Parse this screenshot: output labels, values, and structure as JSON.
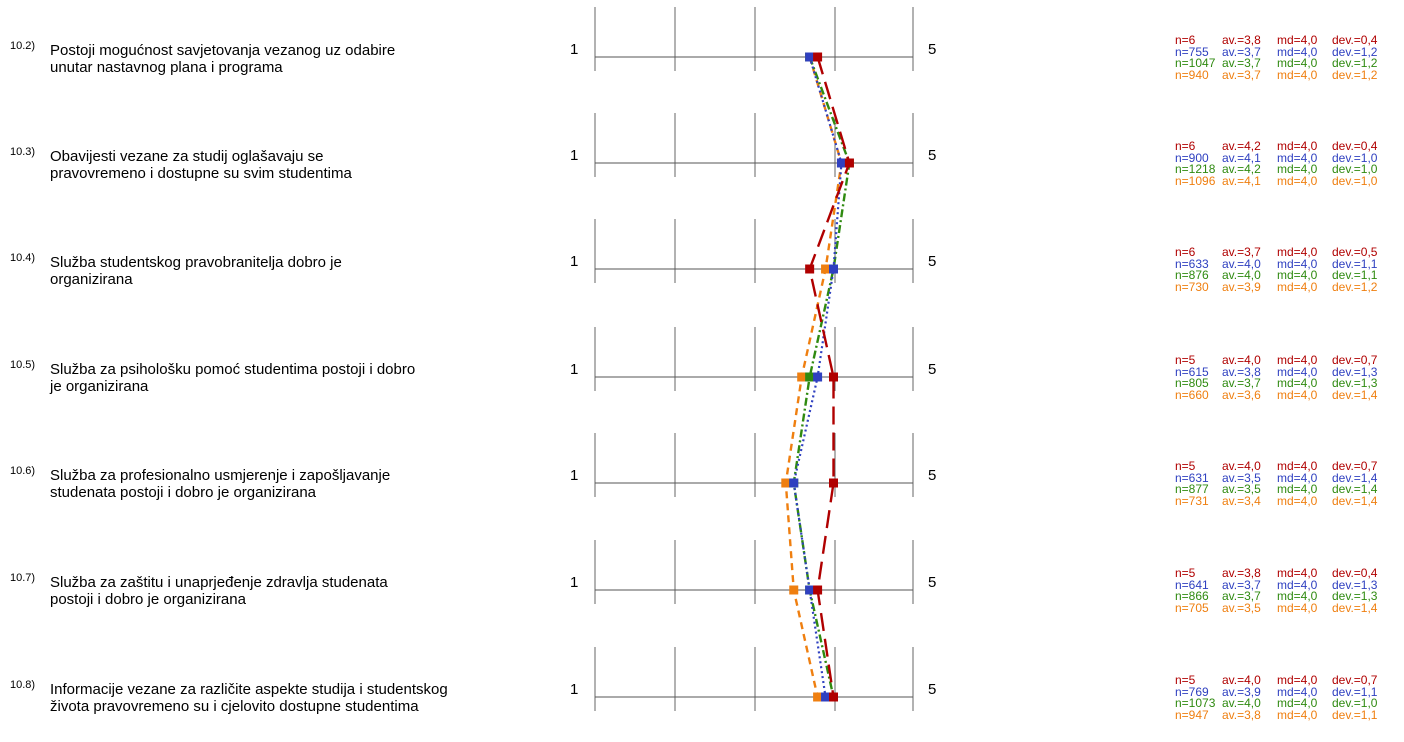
{
  "colors": {
    "series_0": "#b00000",
    "series_1": "#2f40c0",
    "series_2": "#2f8a10",
    "series_3": "#ef7f10",
    "axis": "#555555"
  },
  "chart_data": {
    "type": "line",
    "scale_min_label": "1",
    "scale_max_label": "5",
    "xlim": [
      1,
      5
    ],
    "series": [
      {
        "values": [
          3.8,
          4.2,
          3.7,
          4.0,
          4.0,
          3.8,
          4.0
        ]
      },
      {
        "values": [
          3.7,
          4.1,
          4.0,
          3.8,
          3.5,
          3.7,
          3.9
        ]
      },
      {
        "values": [
          3.7,
          4.2,
          4.0,
          3.7,
          3.5,
          3.7,
          4.0
        ]
      },
      {
        "values": [
          3.7,
          4.1,
          3.9,
          3.6,
          3.4,
          3.5,
          3.8
        ]
      }
    ],
    "items": [
      {
        "number": "10.2)",
        "text": "Postoji mogućnost savjetovanja vezanog uz odabire unutar nastavnog plana i programa",
        "stats": [
          {
            "n": "n=6",
            "av": "av.=3,8",
            "md": "md=4,0",
            "dev": "dev.=0,4"
          },
          {
            "n": "n=755",
            "av": "av.=3,7",
            "md": "md=4,0",
            "dev": "dev.=1,2"
          },
          {
            "n": "n=1047",
            "av": "av.=3,7",
            "md": "md=4,0",
            "dev": "dev.=1,2"
          },
          {
            "n": "n=940",
            "av": "av.=3,7",
            "md": "md=4,0",
            "dev": "dev.=1,2"
          }
        ]
      },
      {
        "number": "10.3)",
        "text": "Obavijesti vezane za studij oglašavaju se pravovremeno i dostupne su svim studentima",
        "stats": [
          {
            "n": "n=6",
            "av": "av.=4,2",
            "md": "md=4,0",
            "dev": "dev.=0,4"
          },
          {
            "n": "n=900",
            "av": "av.=4,1",
            "md": "md=4,0",
            "dev": "dev.=1,0"
          },
          {
            "n": "n=1218",
            "av": "av.=4,2",
            "md": "md=4,0",
            "dev": "dev.=1,0"
          },
          {
            "n": "n=1096",
            "av": "av.=4,1",
            "md": "md=4,0",
            "dev": "dev.=1,0"
          }
        ]
      },
      {
        "number": "10.4)",
        "text": "Služba studentskog pravobranitelja dobro je organizirana",
        "stats": [
          {
            "n": "n=6",
            "av": "av.=3,7",
            "md": "md=4,0",
            "dev": "dev.=0,5"
          },
          {
            "n": "n=633",
            "av": "av.=4,0",
            "md": "md=4,0",
            "dev": "dev.=1,1"
          },
          {
            "n": "n=876",
            "av": "av.=4,0",
            "md": "md=4,0",
            "dev": "dev.=1,1"
          },
          {
            "n": "n=730",
            "av": "av.=3,9",
            "md": "md=4,0",
            "dev": "dev.=1,2"
          }
        ]
      },
      {
        "number": "10.5)",
        "text": "Služba za psihološku pomoć studentima postoji i dobro je organizirana",
        "stats": [
          {
            "n": "n=5",
            "av": "av.=4,0",
            "md": "md=4,0",
            "dev": "dev.=0,7"
          },
          {
            "n": "n=615",
            "av": "av.=3,8",
            "md": "md=4,0",
            "dev": "dev.=1,3"
          },
          {
            "n": "n=805",
            "av": "av.=3,7",
            "md": "md=4,0",
            "dev": "dev.=1,3"
          },
          {
            "n": "n=660",
            "av": "av.=3,6",
            "md": "md=4,0",
            "dev": "dev.=1,4"
          }
        ]
      },
      {
        "number": "10.6)",
        "text": "Služba za profesionalno usmjerenje i zapošljavanje studenata postoji i dobro je organizirana",
        "stats": [
          {
            "n": "n=5",
            "av": "av.=4,0",
            "md": "md=4,0",
            "dev": "dev.=0,7"
          },
          {
            "n": "n=631",
            "av": "av.=3,5",
            "md": "md=4,0",
            "dev": "dev.=1,4"
          },
          {
            "n": "n=877",
            "av": "av.=3,5",
            "md": "md=4,0",
            "dev": "dev.=1,4"
          },
          {
            "n": "n=731",
            "av": "av.=3,4",
            "md": "md=4,0",
            "dev": "dev.=1,4"
          }
        ]
      },
      {
        "number": "10.7)",
        "text": "Služba za zaštitu i unaprjeđenje zdravlja studenata postoji i dobro je organizirana",
        "stats": [
          {
            "n": "n=5",
            "av": "av.=3,8",
            "md": "md=4,0",
            "dev": "dev.=0,4"
          },
          {
            "n": "n=641",
            "av": "av.=3,7",
            "md": "md=4,0",
            "dev": "dev.=1,3"
          },
          {
            "n": "n=866",
            "av": "av.=3,7",
            "md": "md=4,0",
            "dev": "dev.=1,3"
          },
          {
            "n": "n=705",
            "av": "av.=3,5",
            "md": "md=4,0",
            "dev": "dev.=1,4"
          }
        ]
      },
      {
        "number": "10.8)",
        "text": "Informacije vezane za različite aspekte studija i studentskog života pravovremeno su i cjelovito dostupne studentima",
        "stats": [
          {
            "n": "n=5",
            "av": "av.=4,0",
            "md": "md=4,0",
            "dev": "dev.=0,7"
          },
          {
            "n": "n=769",
            "av": "av.=3,9",
            "md": "md=4,0",
            "dev": "dev.=1,1"
          },
          {
            "n": "n=1073",
            "av": "av.=4,0",
            "md": "md=4,0",
            "dev": "dev.=1,0"
          },
          {
            "n": "n=947",
            "av": "av.=3,8",
            "md": "md=4,0",
            "dev": "dev.=1,1"
          }
        ]
      }
    ]
  }
}
